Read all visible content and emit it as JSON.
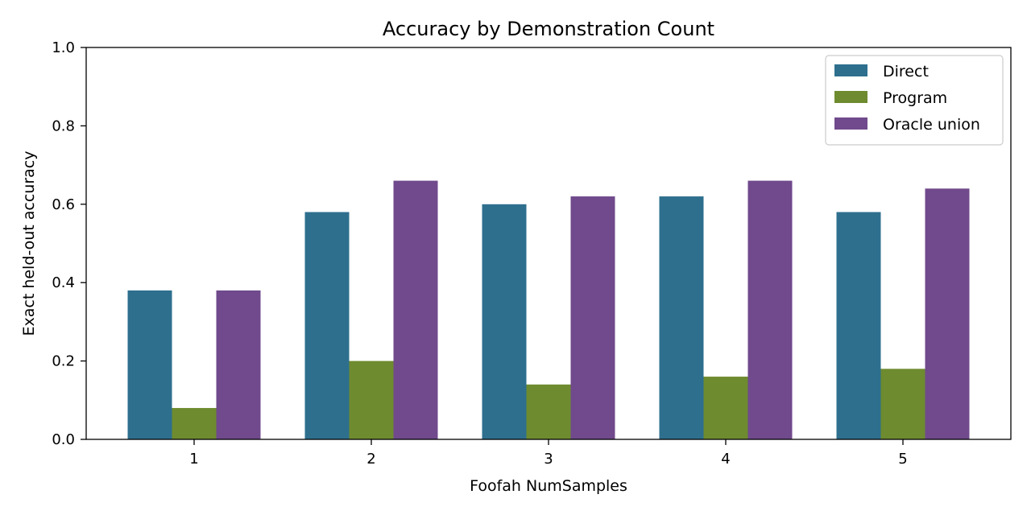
{
  "chart_data": {
    "type": "bar",
    "title": "Accuracy by Demonstration Count",
    "xlabel": "Foofah NumSamples",
    "ylabel": "Exact held-out accuracy",
    "categories": [
      "1",
      "2",
      "3",
      "4",
      "5"
    ],
    "ylim": [
      0,
      1.0
    ],
    "yticks": [
      "0.0",
      "0.2",
      "0.4",
      "0.6",
      "0.8",
      "1.0"
    ],
    "grid": false,
    "legend_position": "top-right",
    "series": [
      {
        "name": "Direct",
        "color": "#2e6f8e",
        "values": [
          0.38,
          0.58,
          0.6,
          0.62,
          0.58
        ]
      },
      {
        "name": "Program",
        "color": "#6e8b2f",
        "values": [
          0.08,
          0.2,
          0.14,
          0.16,
          0.18
        ]
      },
      {
        "name": "Oracle union",
        "color": "#704a8c",
        "values": [
          0.38,
          0.66,
          0.62,
          0.66,
          0.64
        ]
      }
    ]
  }
}
